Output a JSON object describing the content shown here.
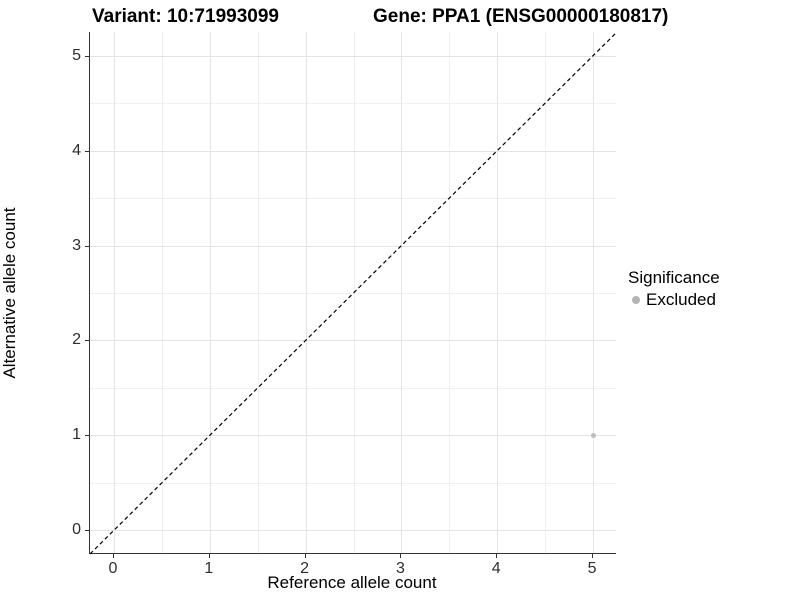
{
  "chart_data": {
    "type": "scatter",
    "titles": {
      "left": "Variant: 10:71993099",
      "right": "Gene: PPA1 (ENSG00000180817)"
    },
    "xlabel": "Reference allele count",
    "ylabel": "Alternative allele count",
    "xlim": [
      -0.25,
      5.25
    ],
    "ylim": [
      -0.25,
      5.25
    ],
    "xticks": [
      0,
      1,
      2,
      3,
      4,
      5
    ],
    "yticks": [
      0,
      1,
      2,
      3,
      4,
      5
    ],
    "xminor": [
      0.5,
      1.5,
      2.5,
      3.5,
      4.5
    ],
    "yminor": [
      0.5,
      1.5,
      2.5,
      3.5,
      4.5
    ],
    "grid": "on",
    "identity_line": {
      "slope": 1,
      "intercept": 0,
      "style": "dashed",
      "color": "#000000"
    },
    "series": [
      {
        "name": "Excluded",
        "color": "#bdbdbd",
        "marker": "circle",
        "points": [
          {
            "x": 5,
            "y": 1
          }
        ]
      }
    ],
    "legend": {
      "title": "Significance",
      "position": "right",
      "entries": [
        {
          "label": "Excluded",
          "color": "#b5b5b5",
          "marker": "circle"
        }
      ]
    }
  },
  "colors": {
    "grid_major": "#e4e4e4",
    "grid_minor": "#f0f0f0",
    "axis_line": "#333333",
    "tick_label": "#2e2e2e",
    "title": "#000000"
  }
}
